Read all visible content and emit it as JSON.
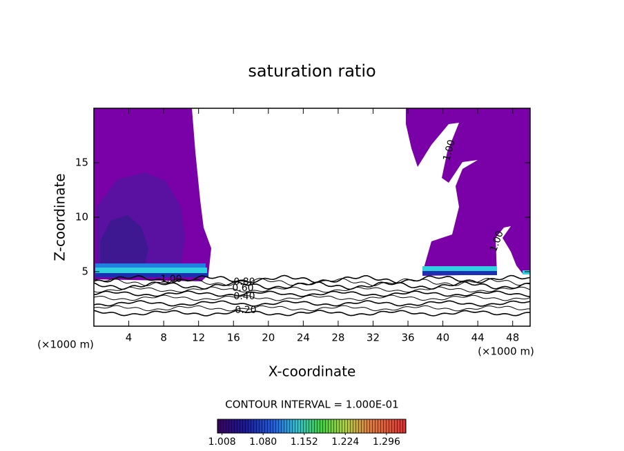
{
  "chart_data": {
    "type": "contour",
    "title": "saturation ratio",
    "x_label": "X-coordinate",
    "y_label": "Z-coordinate",
    "x_unit_left": "(×1000 m)",
    "x_unit_right": "(×1000 m)",
    "xlim": [
      0,
      50
    ],
    "xticks": [
      4,
      8,
      12,
      16,
      20,
      24,
      28,
      32,
      36,
      40,
      44,
      48
    ],
    "ylim": [
      0,
      20
    ],
    "yticks": [
      5,
      10,
      15
    ],
    "contour_labels": [
      {
        "value": 1,
        "label": "1.00"
      },
      {
        "value": 0.8,
        "label": "0.80"
      },
      {
        "value": 0.6,
        "label": "0.60"
      },
      {
        "value": 0.4,
        "label": "0.40"
      },
      {
        "value": 0.2,
        "label": "0.20"
      },
      {
        "value": 1,
        "label": "1.00"
      },
      {
        "value": 1,
        "label": "1.00"
      }
    ],
    "contour_interval_text": "CONTOUR INTERVAL = 1.000E-01",
    "colorbar": {
      "clim": [
        1.0,
        1.33
      ],
      "ticks": [
        1.008,
        {
          "value": 1.08,
          "label": "1.080"
        },
        1.152,
        1.224,
        1.296
      ]
    }
  }
}
